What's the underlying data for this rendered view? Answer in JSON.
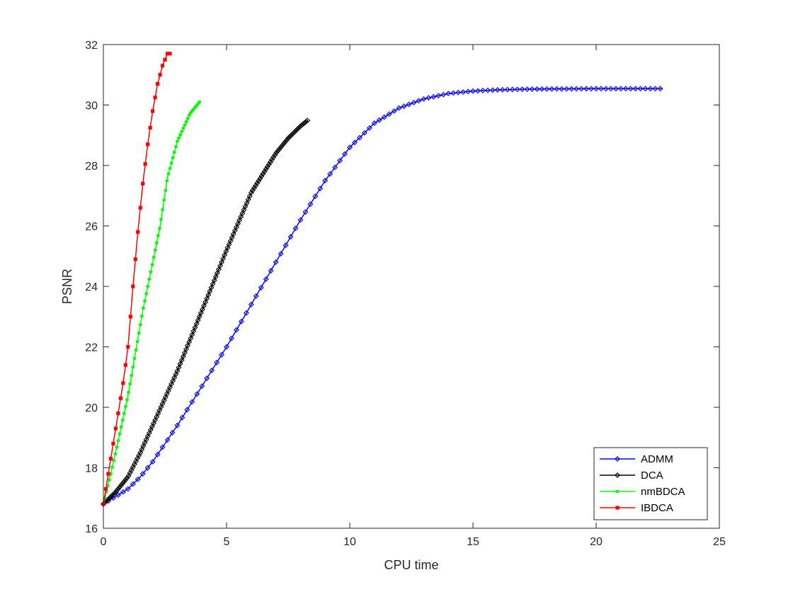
{
  "chart_data": {
    "type": "line",
    "title": "",
    "xlabel": "CPU time",
    "ylabel": "PSNR",
    "xlim": [
      0,
      25
    ],
    "ylim": [
      16,
      32
    ],
    "xticks": [
      0,
      5,
      10,
      15,
      20,
      25
    ],
    "yticks": [
      16,
      18,
      20,
      22,
      24,
      26,
      28,
      30,
      32
    ],
    "xtick_labels": [
      "0",
      "5",
      "10",
      "15",
      "20",
      "25"
    ],
    "ytick_labels": [
      "16",
      "18",
      "20",
      "22",
      "24",
      "26",
      "28",
      "30",
      "32"
    ],
    "grid": false,
    "legend_position": "bottom-right",
    "series": [
      {
        "name": "ADMM",
        "color": "#0000ff",
        "marker": "diamond",
        "x": [
          0,
          0.5,
          1,
          1.5,
          2,
          3,
          4,
          5,
          6,
          7,
          8,
          9,
          10,
          10.5,
          11,
          12,
          13,
          14,
          15,
          16,
          17,
          18,
          20,
          22.7
        ],
        "y": [
          16.8,
          17.05,
          17.3,
          17.7,
          18.2,
          19.4,
          20.7,
          22.0,
          23.4,
          24.8,
          26.2,
          27.5,
          28.6,
          29.0,
          29.4,
          29.9,
          30.2,
          30.38,
          30.46,
          30.5,
          30.52,
          30.53,
          30.54,
          30.54
        ]
      },
      {
        "name": "DCA",
        "color": "#000000",
        "marker": "diamond",
        "x": [
          0,
          0.5,
          1,
          1.5,
          2,
          3,
          4,
          5,
          6,
          7,
          7.5,
          8,
          8.3
        ],
        "y": [
          16.8,
          17.2,
          17.7,
          18.5,
          19.4,
          21.2,
          23.2,
          25.2,
          27.1,
          28.4,
          28.9,
          29.3,
          29.5
        ]
      },
      {
        "name": "nmBDCA",
        "color": "#00ff00",
        "marker": "dot",
        "x": [
          0,
          0.3,
          0.6,
          1,
          1.3,
          1.6,
          2,
          2.3,
          2.6,
          3,
          3.5,
          3.9
        ],
        "y": [
          16.8,
          17.8,
          18.9,
          20.4,
          21.8,
          23.2,
          24.8,
          26.0,
          27.6,
          28.8,
          29.7,
          30.1
        ]
      },
      {
        "name": "IBDCA",
        "color": "#ff0000",
        "marker": "square",
        "x": [
          0,
          0.2,
          0.4,
          0.6,
          0.8,
          1.0,
          1.2,
          1.4,
          1.6,
          1.8,
          2.0,
          2.2,
          2.4,
          2.6,
          2.7
        ],
        "y": [
          16.8,
          17.8,
          18.8,
          19.8,
          20.8,
          22.0,
          24.0,
          25.8,
          27.4,
          28.7,
          29.8,
          30.7,
          31.3,
          31.7,
          31.7
        ]
      }
    ]
  }
}
